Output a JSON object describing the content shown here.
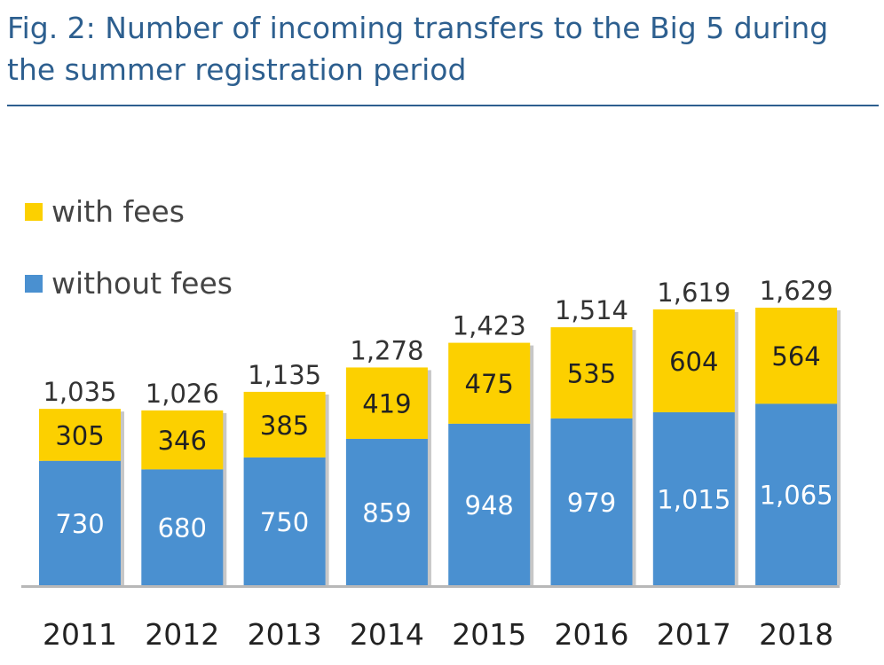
{
  "title": "Fig. 2: Number of incoming transfers to the Big 5 during the summer registration period",
  "colors": {
    "title": "#2d5f8f",
    "with_fees": "#fcd000",
    "without_fees": "#4a90d0",
    "axis": "#b8b8b8"
  },
  "chart_data": {
    "type": "bar",
    "stacked": true,
    "categories": [
      "2011",
      "2012",
      "2013",
      "2014",
      "2015",
      "2016",
      "2017",
      "2018"
    ],
    "series": [
      {
        "name": "without fees",
        "values": [
          730,
          680,
          750,
          859,
          948,
          979,
          1015,
          1065
        ],
        "labels": [
          "730",
          "680",
          "750",
          "859",
          "948",
          "979",
          "1,015",
          "1,065"
        ]
      },
      {
        "name": "with fees",
        "values": [
          305,
          346,
          385,
          419,
          475,
          535,
          604,
          564
        ],
        "labels": [
          "305",
          "346",
          "385",
          "419",
          "475",
          "535",
          "604",
          "564"
        ]
      }
    ],
    "totals": [
      1035,
      1026,
      1135,
      1278,
      1423,
      1514,
      1619,
      1629
    ],
    "total_labels": [
      "1,035",
      "1,026",
      "1,135",
      "1,278",
      "1,423",
      "1,514",
      "1,619",
      "1,629"
    ],
    "legend": [
      "with fees",
      "without fees"
    ],
    "legend_position": "top-left",
    "ylim": [
      0,
      1629
    ],
    "grid": false
  }
}
